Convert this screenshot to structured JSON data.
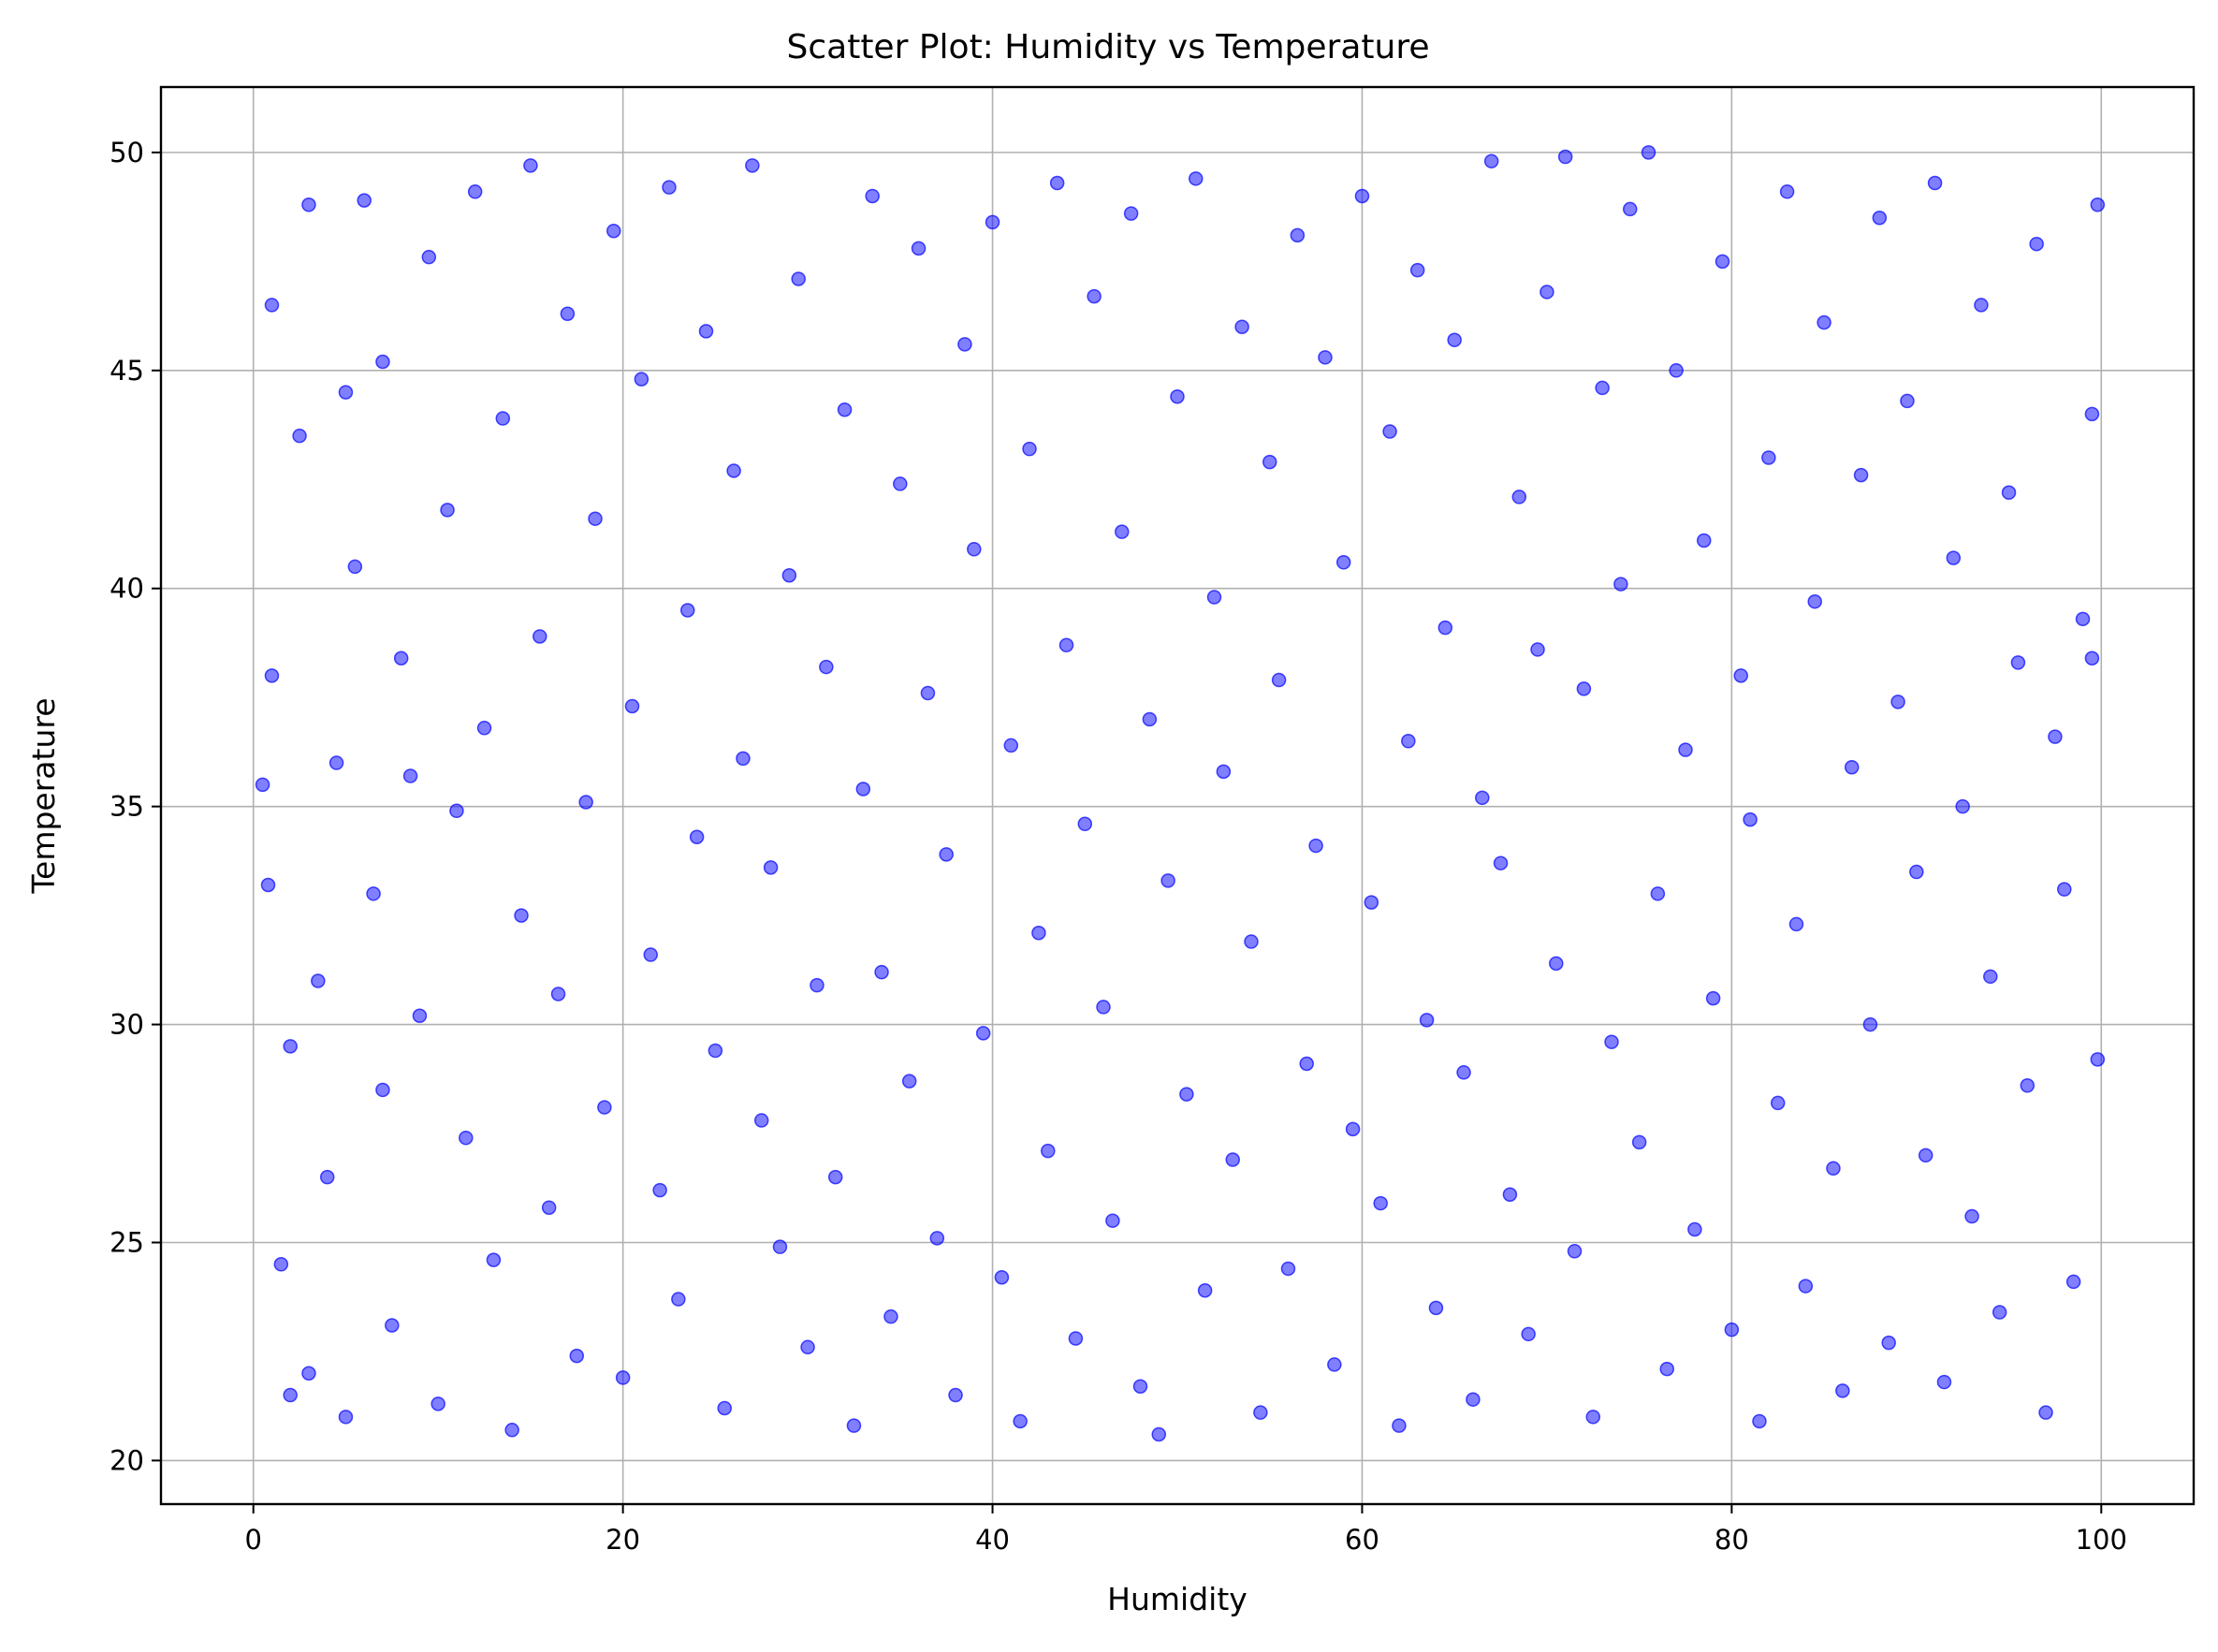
{
  "chart_data": {
    "type": "scatter",
    "title": "Scatter Plot: Humidity vs Temperature",
    "xlabel": "Humidity",
    "ylabel": "Temperature",
    "xlim": [
      -5,
      105
    ],
    "ylim": [
      19,
      51.5
    ],
    "xticks": [
      0,
      20,
      40,
      60,
      80,
      100
    ],
    "yticks": [
      20,
      25,
      30,
      35,
      40,
      45,
      50
    ],
    "grid": true,
    "legend": false,
    "marker_color": "#0000ff",
    "marker_alpha": 0.5,
    "series": [
      {
        "points": [
          [
            0.5,
            35.5
          ],
          [
            0.8,
            33.2
          ],
          [
            1,
            38
          ],
          [
            1,
            46.5
          ],
          [
            1.5,
            24.5
          ],
          [
            2,
            29.5
          ],
          [
            2,
            21.5
          ],
          [
            2.5,
            43.5
          ],
          [
            3,
            48.8
          ],
          [
            3,
            22
          ],
          [
            3.5,
            31
          ],
          [
            4,
            26.5
          ],
          [
            4.5,
            36
          ],
          [
            5,
            21
          ],
          [
            5,
            44.5
          ],
          [
            5.5,
            40.5
          ],
          [
            6,
            48.9
          ],
          [
            6.5,
            33
          ],
          [
            7,
            28.5
          ],
          [
            7,
            45.2
          ],
          [
            7.5,
            23.1
          ],
          [
            8,
            38.4
          ],
          [
            8.5,
            35.7
          ],
          [
            9,
            30.2
          ],
          [
            9.5,
            47.6
          ],
          [
            10,
            21.3
          ],
          [
            10.5,
            41.8
          ],
          [
            11,
            34.9
          ],
          [
            11.5,
            27.4
          ],
          [
            12,
            49.1
          ],
          [
            12.5,
            36.8
          ],
          [
            13,
            24.6
          ],
          [
            13.5,
            43.9
          ],
          [
            14,
            20.7
          ],
          [
            14.5,
            32.5
          ],
          [
            15,
            49.7
          ],
          [
            15.5,
            38.9
          ],
          [
            16,
            25.8
          ],
          [
            16.5,
            30.7
          ],
          [
            17,
            46.3
          ],
          [
            17.5,
            22.4
          ],
          [
            18,
            35.1
          ],
          [
            18.5,
            41.6
          ],
          [
            19,
            28.1
          ],
          [
            19.5,
            48.2
          ],
          [
            20,
            21.9
          ],
          [
            20.5,
            37.3
          ],
          [
            21,
            44.8
          ],
          [
            21.5,
            31.6
          ],
          [
            22,
            26.2
          ],
          [
            22.5,
            49.2
          ],
          [
            23,
            23.7
          ],
          [
            23.5,
            39.5
          ],
          [
            24,
            34.3
          ],
          [
            24.5,
            45.9
          ],
          [
            25,
            29.4
          ],
          [
            25.5,
            21.2
          ],
          [
            26,
            42.7
          ],
          [
            26.5,
            36.1
          ],
          [
            27,
            49.7
          ],
          [
            27.5,
            27.8
          ],
          [
            28,
            33.6
          ],
          [
            28.5,
            24.9
          ],
          [
            29,
            40.3
          ],
          [
            29.5,
            47.1
          ],
          [
            30,
            22.6
          ],
          [
            30.5,
            30.9
          ],
          [
            31,
            38.2
          ],
          [
            31.5,
            26.5
          ],
          [
            32,
            44.1
          ],
          [
            32.5,
            20.8
          ],
          [
            33,
            35.4
          ],
          [
            33.5,
            49.0
          ],
          [
            34,
            31.2
          ],
          [
            34.5,
            23.3
          ],
          [
            35,
            42.4
          ],
          [
            35.5,
            28.7
          ],
          [
            36,
            47.8
          ],
          [
            36.5,
            37.6
          ],
          [
            37,
            25.1
          ],
          [
            37.5,
            33.9
          ],
          [
            38,
            21.5
          ],
          [
            38.5,
            45.6
          ],
          [
            39,
            40.9
          ],
          [
            39.5,
            29.8
          ],
          [
            40,
            48.4
          ],
          [
            40.5,
            24.2
          ],
          [
            41,
            36.4
          ],
          [
            41.5,
            20.9
          ],
          [
            42,
            43.2
          ],
          [
            42.5,
            32.1
          ],
          [
            43,
            27.1
          ],
          [
            43.5,
            49.3
          ],
          [
            44,
            38.7
          ],
          [
            44.5,
            22.8
          ],
          [
            45,
            34.6
          ],
          [
            45.5,
            46.7
          ],
          [
            46,
            30.4
          ],
          [
            46.5,
            25.5
          ],
          [
            47,
            41.3
          ],
          [
            47.5,
            48.6
          ],
          [
            48,
            21.7
          ],
          [
            48.5,
            37.0
          ],
          [
            49,
            20.6
          ],
          [
            49.5,
            33.3
          ],
          [
            50,
            44.4
          ],
          [
            50.5,
            28.4
          ],
          [
            51,
            49.4
          ],
          [
            51.5,
            23.9
          ],
          [
            52,
            39.8
          ],
          [
            52.5,
            35.8
          ],
          [
            53,
            26.9
          ],
          [
            53.5,
            46.0
          ],
          [
            54,
            31.9
          ],
          [
            54.5,
            21.1
          ],
          [
            55,
            42.9
          ],
          [
            55.5,
            37.9
          ],
          [
            56,
            24.4
          ],
          [
            56.5,
            48.1
          ],
          [
            57,
            29.1
          ],
          [
            57.5,
            34.1
          ],
          [
            58,
            45.3
          ],
          [
            58.5,
            22.2
          ],
          [
            59,
            40.6
          ],
          [
            59.5,
            27.6
          ],
          [
            60,
            49.0
          ],
          [
            60.5,
            32.8
          ],
          [
            61,
            25.9
          ],
          [
            61.5,
            43.6
          ],
          [
            62,
            20.8
          ],
          [
            62.5,
            36.5
          ],
          [
            63,
            47.3
          ],
          [
            63.5,
            30.1
          ],
          [
            64,
            23.5
          ],
          [
            64.5,
            39.1
          ],
          [
            65,
            45.7
          ],
          [
            65.5,
            28.9
          ],
          [
            66,
            21.4
          ],
          [
            66.5,
            35.2
          ],
          [
            67,
            49.8
          ],
          [
            67.5,
            33.7
          ],
          [
            68,
            26.1
          ],
          [
            68.5,
            42.1
          ],
          [
            69,
            22.9
          ],
          [
            69.5,
            38.6
          ],
          [
            70,
            46.8
          ],
          [
            70.5,
            31.4
          ],
          [
            71,
            49.9
          ],
          [
            71.5,
            24.8
          ],
          [
            72,
            37.7
          ],
          [
            72.5,
            21.0
          ],
          [
            73,
            44.6
          ],
          [
            73.5,
            29.6
          ],
          [
            74,
            40.1
          ],
          [
            74.5,
            48.7
          ],
          [
            75,
            27.3
          ],
          [
            75.5,
            50.0
          ],
          [
            76,
            33.0
          ],
          [
            76.5,
            22.1
          ],
          [
            77,
            45.0
          ],
          [
            77.5,
            36.3
          ],
          [
            78,
            25.3
          ],
          [
            78.5,
            41.1
          ],
          [
            79,
            30.6
          ],
          [
            79.5,
            47.5
          ],
          [
            80,
            23.0
          ],
          [
            80.5,
            38.0
          ],
          [
            81,
            34.7
          ],
          [
            81.5,
            20.9
          ],
          [
            82,
            43.0
          ],
          [
            82.5,
            28.2
          ],
          [
            83,
            49.1
          ],
          [
            83.5,
            32.3
          ],
          [
            84,
            24.0
          ],
          [
            84.5,
            39.7
          ],
          [
            85,
            46.1
          ],
          [
            85.5,
            26.7
          ],
          [
            86,
            21.6
          ],
          [
            86.5,
            35.9
          ],
          [
            87,
            42.6
          ],
          [
            87.5,
            30.0
          ],
          [
            88,
            48.5
          ],
          [
            88.5,
            22.7
          ],
          [
            89,
            37.4
          ],
          [
            89.5,
            44.3
          ],
          [
            90,
            33.5
          ],
          [
            90.5,
            27.0
          ],
          [
            91,
            49.3
          ],
          [
            91.5,
            21.8
          ],
          [
            92,
            40.7
          ],
          [
            92.5,
            35.0
          ],
          [
            93,
            25.6
          ],
          [
            93.5,
            46.5
          ],
          [
            94,
            31.1
          ],
          [
            94.5,
            23.4
          ],
          [
            95,
            42.2
          ],
          [
            95.5,
            38.3
          ],
          [
            96,
            28.6
          ],
          [
            96.5,
            47.9
          ],
          [
            97,
            21.1
          ],
          [
            97.5,
            36.6
          ],
          [
            98,
            33.1
          ],
          [
            98.5,
            24.1
          ],
          [
            99,
            39.3
          ],
          [
            99.5,
            44.0
          ],
          [
            99.8,
            29.2
          ],
          [
            99.8,
            48.8
          ],
          [
            99.5,
            38.4
          ]
        ]
      }
    ]
  }
}
